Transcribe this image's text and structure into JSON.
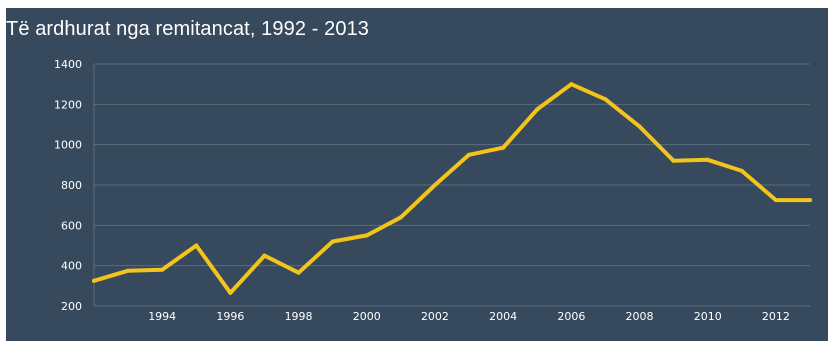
{
  "chart_data": {
    "type": "line",
    "title": "Të ardhurat nga remitancat, 1992 - 2013",
    "xlabel": "",
    "ylabel": "",
    "x": [
      1992,
      1993,
      1994,
      1995,
      1996,
      1997,
      1998,
      1999,
      2000,
      2001,
      2002,
      2003,
      2004,
      2005,
      2006,
      2007,
      2008,
      2009,
      2010,
      2011,
      2012,
      2013
    ],
    "series": [
      {
        "values": [
          325,
          375,
          380,
          500,
          265,
          450,
          365,
          520,
          550,
          640,
          800,
          950,
          985,
          1175,
          1300,
          1225,
          1090,
          920,
          925,
          870,
          725,
          725
        ]
      }
    ],
    "ylim": [
      200,
      1400
    ],
    "yticks": [
      200,
      400,
      600,
      800,
      1000,
      1200,
      1400
    ],
    "xticks": [
      "1994",
      "1996",
      "1998",
      "2000",
      "2002",
      "2004",
      "2006",
      "2008",
      "2010",
      "2012"
    ],
    "grid": true,
    "colors": {
      "background": "#36495d",
      "line": "#f3c51a",
      "grid": "#5a6d7f",
      "text": "#ffffff"
    }
  }
}
